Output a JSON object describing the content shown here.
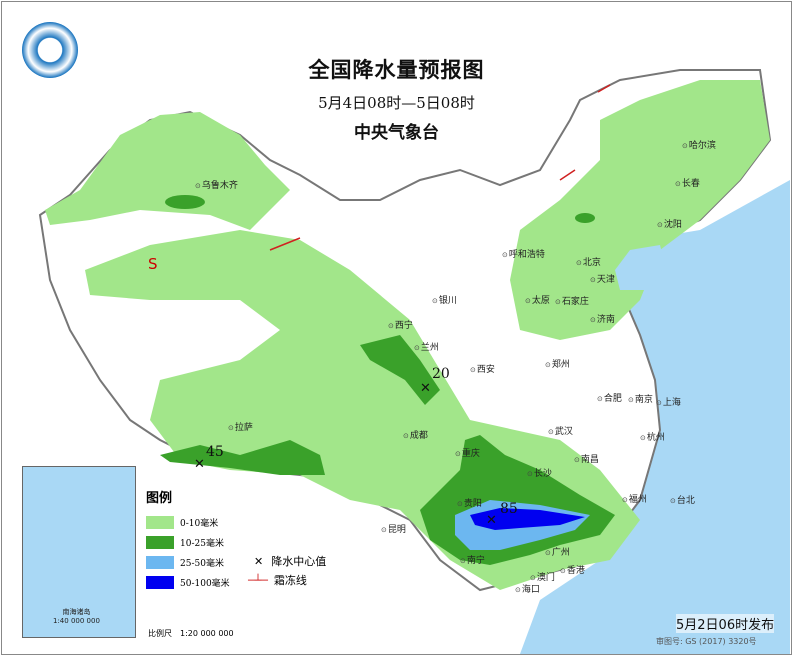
{
  "header": {
    "title": "全国降水量预报图",
    "period": "5月4日08时—5日08时",
    "issuer": "中央气象台"
  },
  "logo": {
    "name": "cma-logo-icon"
  },
  "legend": {
    "title": "图例",
    "items": [
      {
        "label": "0-10毫米",
        "color": "#a2e68a"
      },
      {
        "label": "10-25毫米",
        "color": "#3aa12a"
      },
      {
        "label": "25-50毫米",
        "color": "#6cb7f0"
      },
      {
        "label": "50-100毫米",
        "color": "#0000f0"
      }
    ],
    "symbols": [
      {
        "label": "降水中心值",
        "icon": "x-mark-icon"
      },
      {
        "label": "霜冻线",
        "icon": "frost-line-icon"
      }
    ]
  },
  "centers": [
    {
      "value": "20"
    },
    {
      "value": "45"
    },
    {
      "value": "85"
    }
  ],
  "special_label": "S",
  "cities": [
    "乌鲁木齐",
    "拉萨",
    "西宁",
    "兰州",
    "银川",
    "呼和浩特",
    "北京",
    "天津",
    "太原",
    "石家庄",
    "济南",
    "沈阳",
    "长春",
    "哈尔滨",
    "西安",
    "郑州",
    "成都",
    "重庆",
    "武汉",
    "合肥",
    "南京",
    "上海",
    "杭州",
    "南昌",
    "长沙",
    "贵阳",
    "昆明",
    "南宁",
    "广州",
    "福州",
    "台北",
    "海口",
    "香港",
    "澳门"
  ],
  "inset": {
    "label": "南海诸岛",
    "scale": "1:40 000 000"
  },
  "scale": "比例尺　1:20 000 000",
  "footer": {
    "issued": "5月2日06时发布",
    "approval": "审图号: GS (2017) 3320号"
  },
  "colors": {
    "sea": "#a9d8f5",
    "light_rain": "#a2e68a",
    "moderate_rain": "#3aa12a",
    "heavy_rain": "#6cb7f0",
    "storm": "#0000f0",
    "frost_line": "#d02020"
  }
}
